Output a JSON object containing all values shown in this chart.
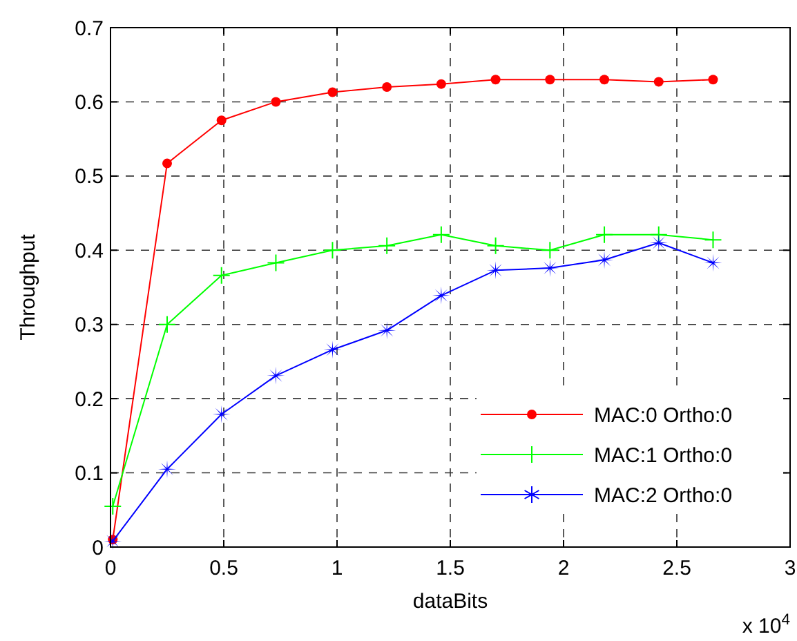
{
  "chart_data": {
    "type": "line",
    "xlabel": "dataBits",
    "ylabel": "Throughput",
    "annotations": [
      "x 10$^{4}$"
    ],
    "xlim": [
      0,
      3
    ],
    "xticks": [
      0,
      0.5,
      1,
      1.5,
      2,
      2.5,
      3
    ],
    "ylim": [
      0,
      0.7
    ],
    "yticks": [
      0,
      0.1,
      0.2,
      0.3,
      0.4,
      0.5,
      0.6,
      0.7
    ],
    "grid": true,
    "legend": "bottom right",
    "x": [
      0.01,
      0.25,
      0.49,
      0.73,
      0.98,
      1.22,
      1.46,
      1.7,
      1.94,
      2.18,
      2.42,
      2.66
    ],
    "series": [
      {
        "name": "MAC:0 Ortho:0",
        "color": "#ff0000",
        "marker": "circle",
        "values": [
          0.01,
          0.517,
          0.575,
          0.6,
          0.613,
          0.62,
          0.624,
          0.63,
          0.63,
          0.63,
          0.627,
          0.63
        ]
      },
      {
        "name": "MAC:1 Ortho:0",
        "color": "#00ff00",
        "marker": "cross",
        "values": [
          0.055,
          0.3,
          0.366,
          0.383,
          0.4,
          0.406,
          0.421,
          0.406,
          0.4,
          0.421,
          0.421,
          0.414
        ]
      },
      {
        "name": "MAC:2 Ortho:0",
        "color": "#0000ff",
        "marker": "star",
        "values": [
          0.008,
          0.105,
          0.179,
          0.231,
          0.266,
          0.292,
          0.339,
          0.373,
          0.376,
          0.387,
          0.41,
          0.383
        ]
      }
    ]
  }
}
